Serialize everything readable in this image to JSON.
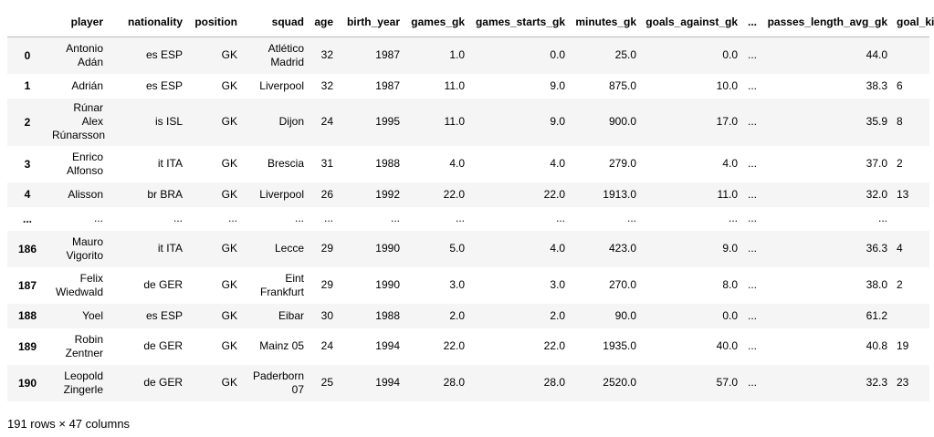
{
  "columns": [
    "",
    "player",
    "nationality",
    "position",
    "squad",
    "age",
    "birth_year",
    "games_gk",
    "games_starts_gk",
    "minutes_gk",
    "goals_against_gk",
    "...",
    "passes_length_avg_gk",
    "goal_ki"
  ],
  "rows": [
    [
      "0",
      "Antonio Adán",
      "es ESP",
      "GK",
      "Atlético Madrid",
      "32",
      "1987",
      "1.0",
      "0.0",
      "25.0",
      "0.0",
      "...",
      "44.0",
      ""
    ],
    [
      "1",
      "Adrián",
      "es ESP",
      "GK",
      "Liverpool",
      "32",
      "1987",
      "11.0",
      "9.0",
      "875.0",
      "10.0",
      "...",
      "38.3",
      "6"
    ],
    [
      "2",
      "Rúnar Alex Rúnarsson",
      "is ISL",
      "GK",
      "Dijon",
      "24",
      "1995",
      "11.0",
      "9.0",
      "900.0",
      "17.0",
      "...",
      "35.9",
      "8"
    ],
    [
      "3",
      "Enrico Alfonso",
      "it ITA",
      "GK",
      "Brescia",
      "31",
      "1988",
      "4.0",
      "4.0",
      "279.0",
      "4.0",
      "...",
      "37.0",
      "2"
    ],
    [
      "4",
      "Alisson",
      "br BRA",
      "GK",
      "Liverpool",
      "26",
      "1992",
      "22.0",
      "22.0",
      "1913.0",
      "11.0",
      "...",
      "32.0",
      "13"
    ],
    [
      "...",
      "...",
      "...",
      "...",
      "...",
      "...",
      "...",
      "...",
      "...",
      "...",
      "...",
      "...",
      "...",
      ""
    ],
    [
      "186",
      "Mauro Vigorito",
      "it ITA",
      "GK",
      "Lecce",
      "29",
      "1990",
      "5.0",
      "4.0",
      "423.0",
      "9.0",
      "...",
      "36.3",
      "4"
    ],
    [
      "187",
      "Felix Wiedwald",
      "de GER",
      "GK",
      "Eint Frankfurt",
      "29",
      "1990",
      "3.0",
      "3.0",
      "270.0",
      "8.0",
      "...",
      "38.0",
      "2"
    ],
    [
      "188",
      "Yoel",
      "es ESP",
      "GK",
      "Eibar",
      "30",
      "1988",
      "2.0",
      "2.0",
      "90.0",
      "0.0",
      "...",
      "61.2",
      ""
    ],
    [
      "189",
      "Robin Zentner",
      "de GER",
      "GK",
      "Mainz 05",
      "24",
      "1994",
      "22.0",
      "22.0",
      "1935.0",
      "40.0",
      "...",
      "40.8",
      "19"
    ],
    [
      "190",
      "Leopold Zingerle",
      "de GER",
      "GK",
      "Paderborn 07",
      "25",
      "1994",
      "28.0",
      "28.0",
      "2520.0",
      "57.0",
      "...",
      "32.3",
      "23"
    ]
  ],
  "footer": "191 rows × 47 columns"
}
